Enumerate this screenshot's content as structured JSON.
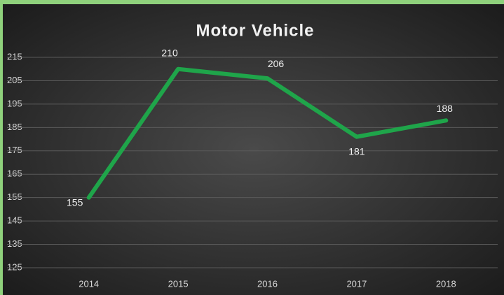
{
  "chart_data": {
    "type": "line",
    "title": "Motor Vehicle",
    "categories": [
      "2014",
      "2015",
      "2016",
      "2017",
      "2018"
    ],
    "values": [
      155,
      210,
      206,
      181,
      188
    ],
    "color": "#1fa54a",
    "ylim": [
      125,
      215
    ],
    "yticks": [
      125,
      135,
      145,
      155,
      165,
      175,
      185,
      195,
      205,
      215
    ],
    "grid": true
  }
}
